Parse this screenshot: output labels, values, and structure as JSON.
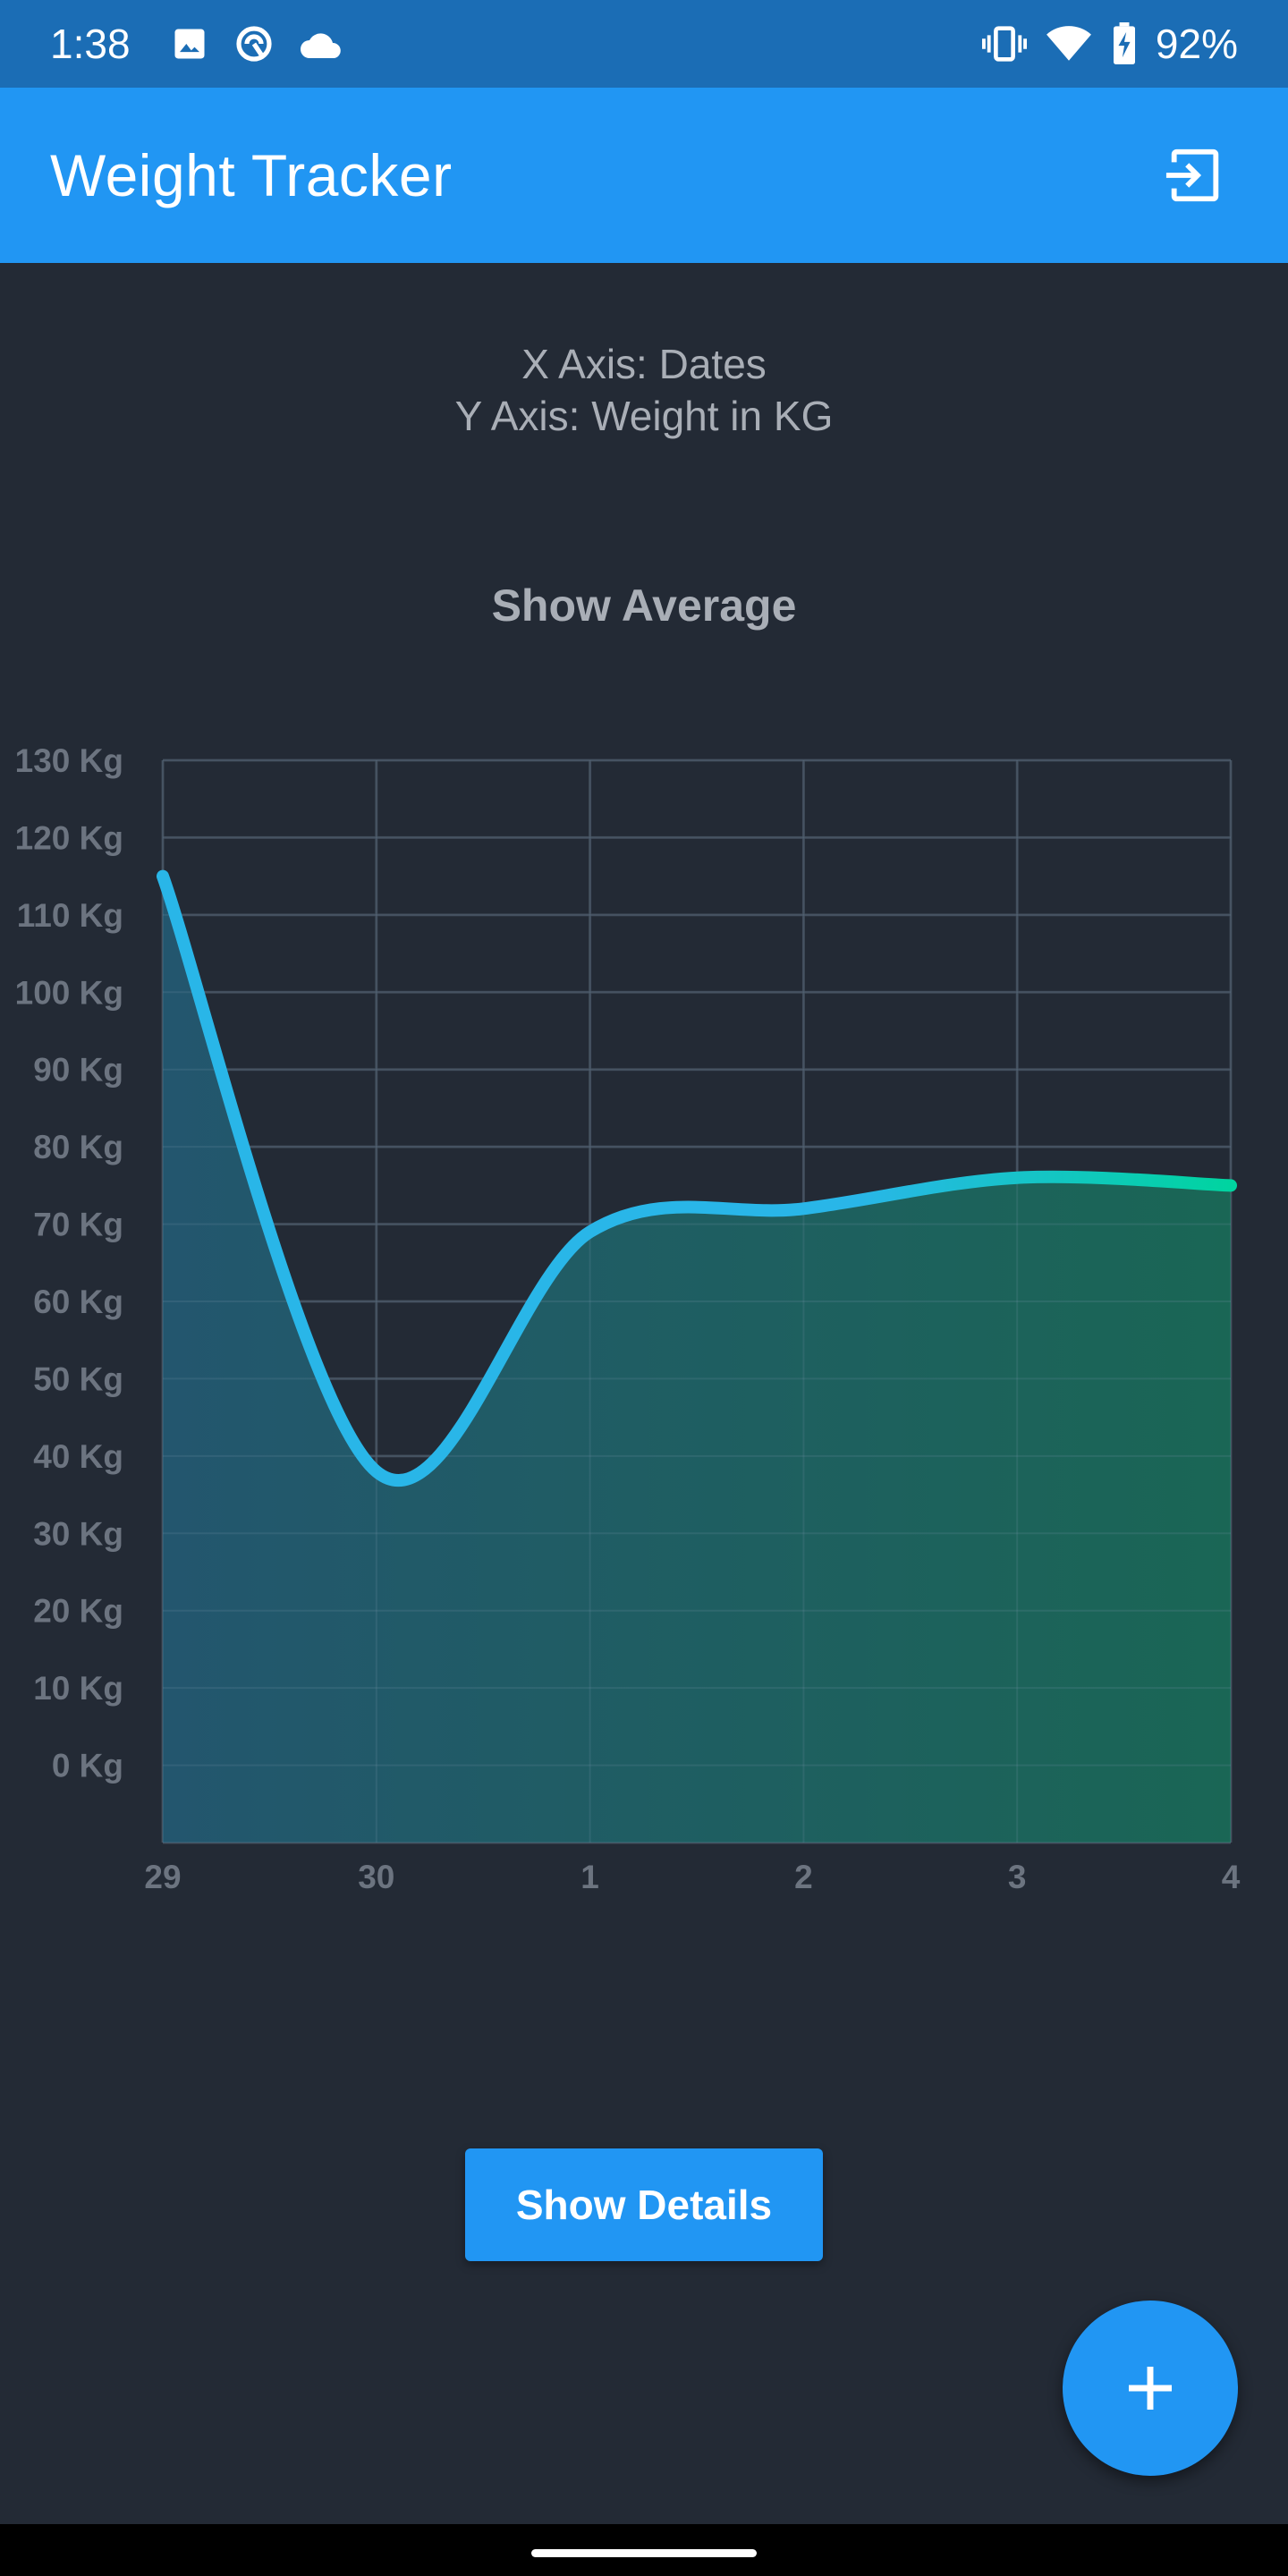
{
  "status_bar": {
    "time": "1:38",
    "battery_percent": "92%",
    "left_icons": [
      "image-icon",
      "data-saver-icon",
      "cloud-icon"
    ],
    "right_icons": [
      "vibrate-icon",
      "wifi-icon",
      "battery-charging-icon"
    ]
  },
  "app_bar": {
    "title": "Weight Tracker",
    "action_icon": "logout-icon"
  },
  "axis_info": {
    "x_line": "X Axis: Dates",
    "y_line": "Y Axis: Weight in KG"
  },
  "show_average_label": "Show Average",
  "chart_data": {
    "type": "area",
    "title": "",
    "xlabel": "",
    "ylabel": "",
    "x_categories": [
      "29",
      "30",
      "1",
      "2",
      "3",
      "4"
    ],
    "y_ticks": [
      "130 Kg",
      "120 Kg",
      "110 Kg",
      "100 Kg",
      "90 Kg",
      "80 Kg",
      "70 Kg",
      "60 Kg",
      "50 Kg",
      "40 Kg",
      "30 Kg",
      "20 Kg",
      "10 Kg",
      "0 Kg"
    ],
    "y_tick_values": [
      130,
      120,
      110,
      100,
      90,
      80,
      70,
      60,
      50,
      40,
      30,
      20,
      10,
      0
    ],
    "ylim": [
      -10,
      130
    ],
    "grid": true,
    "series": [
      {
        "values": [
          115,
          38,
          69,
          72,
          76,
          75
        ]
      }
    ],
    "colors": {
      "line_start": "#29b6e8",
      "line_end": "#00d4a0",
      "fill_start": "#23566e",
      "fill_end": "#1a6655",
      "grid": "#3b4552",
      "tick_label": "#6c7480"
    }
  },
  "show_details_label": "Show Details",
  "fab": {
    "icon": "plus-icon"
  }
}
